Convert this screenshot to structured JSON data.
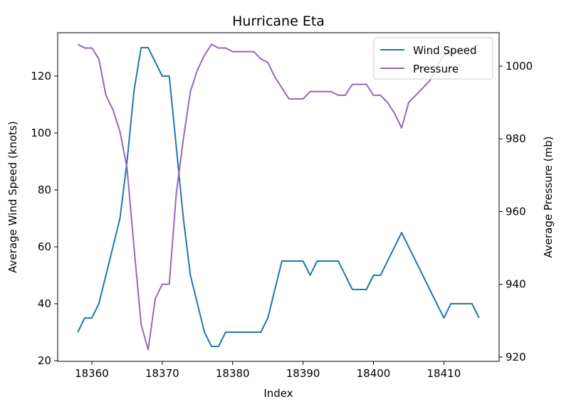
{
  "chart_data": {
    "type": "line",
    "title": "Hurricane Eta",
    "xlabel": "Index",
    "ylabel": "Average Wind Speed (knots)",
    "y2label": "Average Pressure (mb)",
    "xlim": [
      18355.15,
      18417.85
    ],
    "ylim": [
      19.75,
      135.25
    ],
    "y2lim": [
      918.8,
      1009.2
    ],
    "xticks": [
      18360,
      18370,
      18380,
      18390,
      18400,
      18410
    ],
    "yticks": [
      20,
      40,
      60,
      80,
      100,
      120
    ],
    "y2ticks": [
      920,
      940,
      960,
      980,
      1000
    ],
    "legend_location": "upper right",
    "grid": false,
    "x": [
      18358,
      18359,
      18360,
      18361,
      18362,
      18363,
      18364,
      18365,
      18366,
      18367,
      18368,
      18369,
      18370,
      18371,
      18372,
      18373,
      18374,
      18375,
      18376,
      18377,
      18378,
      18379,
      18380,
      18381,
      18382,
      18383,
      18384,
      18385,
      18386,
      18387,
      18388,
      18389,
      18390,
      18391,
      18392,
      18393,
      18394,
      18395,
      18396,
      18397,
      18398,
      18399,
      18400,
      18401,
      18402,
      18403,
      18404,
      18405,
      18406,
      18407,
      18408,
      18409,
      18410,
      18411,
      18412,
      18413,
      18414,
      18415
    ],
    "series": [
      {
        "name": "Wind Speed",
        "axis": "left",
        "color": "#1f77b4",
        "values": [
          30,
          35,
          35,
          40,
          50,
          60,
          70,
          90,
          115,
          130,
          130,
          125,
          120,
          120,
          95,
          70,
          50,
          40,
          30,
          25,
          25,
          30,
          30,
          30,
          30,
          30,
          30,
          35,
          45,
          55,
          55,
          55,
          55,
          50,
          55,
          55,
          55,
          55,
          50,
          45,
          45,
          45,
          50,
          50,
          55,
          60,
          65,
          60,
          55,
          50,
          45,
          40,
          35,
          40,
          40,
          40,
          40,
          35
        ]
      },
      {
        "name": "Pressure",
        "axis": "right",
        "color": "#9467bd",
        "values": [
          1006,
          1005,
          1005,
          1002,
          992,
          988,
          982,
          972,
          950,
          929,
          922,
          936,
          940,
          940,
          965,
          980,
          993,
          999,
          1003,
          1006,
          1005,
          1005,
          1004,
          1004,
          1004,
          1004,
          1002,
          1001,
          997,
          994,
          991,
          991,
          991,
          993,
          993,
          993,
          993,
          992,
          992,
          995,
          995,
          995,
          992,
          992,
          990,
          987,
          983,
          990,
          992,
          994,
          996,
          1000,
          1003,
          1004,
          1004,
          1005,
          1005,
          1006
        ]
      }
    ]
  }
}
